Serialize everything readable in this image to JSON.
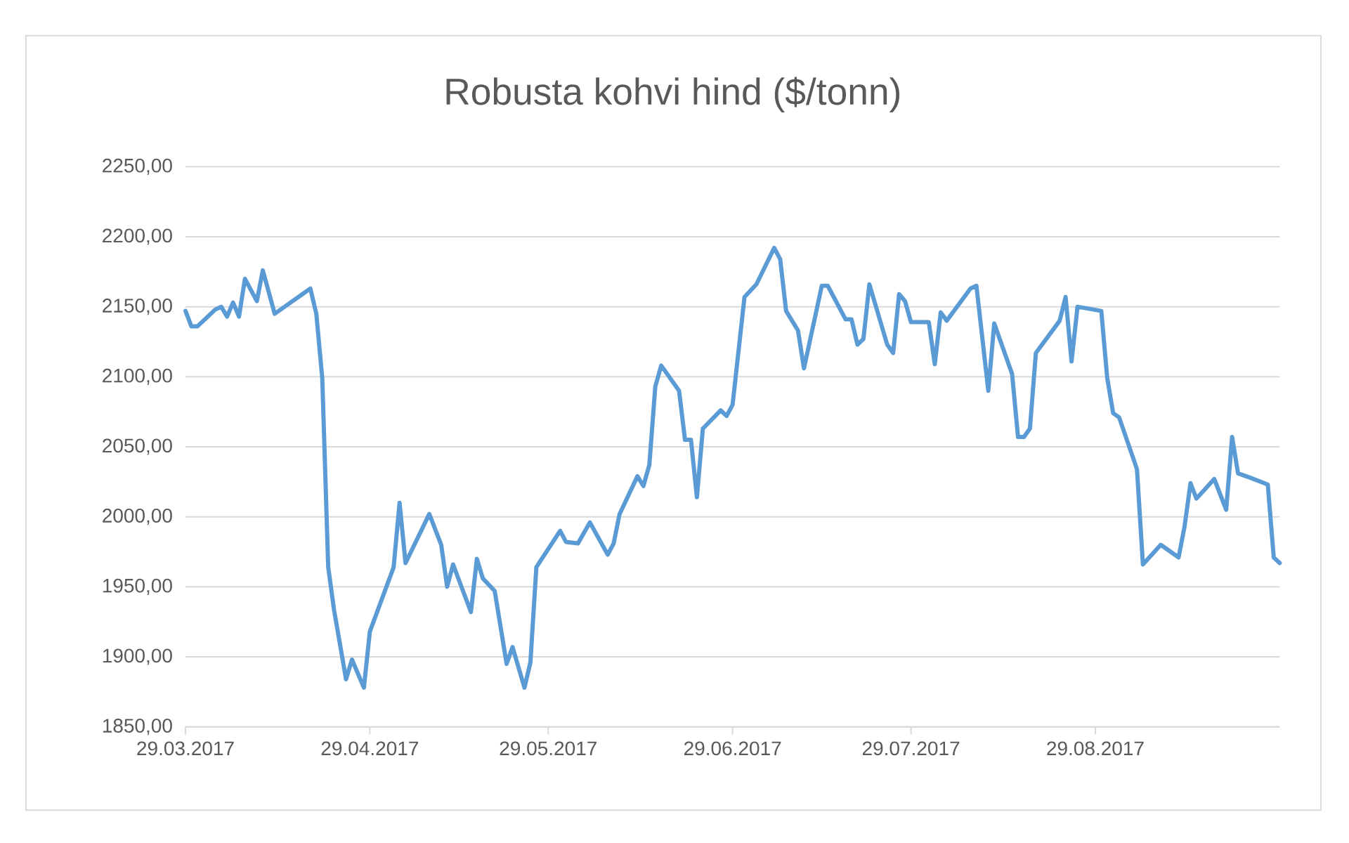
{
  "chart_data": {
    "type": "line",
    "title": "Robusta kohvi hind ($/tonn)",
    "color": "#5b9bd5",
    "grid": "y",
    "marker": "none",
    "line_style": "solid",
    "xlim": [
      "2017-03-29",
      "2017-09-29"
    ],
    "ylim": [
      1850,
      2250
    ],
    "xticks": [
      {
        "value": "2017-03-29",
        "label": "29.03.2017"
      },
      {
        "value": "2017-04-29",
        "label": "29.04.2017"
      },
      {
        "value": "2017-05-29",
        "label": "29.05.2017"
      },
      {
        "value": "2017-06-29",
        "label": "29.06.2017"
      },
      {
        "value": "2017-07-29",
        "label": "29.07.2017"
      },
      {
        "value": "2017-08-29",
        "label": "29.08.2017"
      }
    ],
    "yticks": [
      {
        "value": 1850,
        "label": "1850,00"
      },
      {
        "value": 1900,
        "label": "1900,00"
      },
      {
        "value": 1950,
        "label": "1950,00"
      },
      {
        "value": 2000,
        "label": "2000,00"
      },
      {
        "value": 2050,
        "label": "2050,00"
      },
      {
        "value": 2100,
        "label": "2100,00"
      },
      {
        "value": 2150,
        "label": "2150,00"
      },
      {
        "value": 2200,
        "label": "2200,00"
      },
      {
        "value": 2250,
        "label": "2250,00"
      }
    ],
    "x": [
      "2017-03-29",
      "2017-03-30",
      "2017-03-31",
      "2017-04-03",
      "2017-04-04",
      "2017-04-05",
      "2017-04-06",
      "2017-04-07",
      "2017-04-08",
      "2017-04-10",
      "2017-04-11",
      "2017-04-13",
      "2017-04-19",
      "2017-04-20",
      "2017-04-21",
      "2017-04-22",
      "2017-04-23",
      "2017-04-25",
      "2017-04-26",
      "2017-04-28",
      "2017-04-29",
      "2017-05-03",
      "2017-05-04",
      "2017-05-05",
      "2017-05-09",
      "2017-05-11",
      "2017-05-12",
      "2017-05-13",
      "2017-05-16",
      "2017-05-17",
      "2017-05-18",
      "2017-05-20",
      "2017-05-22",
      "2017-05-23",
      "2017-05-25",
      "2017-05-26",
      "2017-05-27",
      "2017-05-31",
      "2017-06-01",
      "2017-06-03",
      "2017-06-05",
      "2017-06-08",
      "2017-06-09",
      "2017-06-10",
      "2017-06-13",
      "2017-06-14",
      "2017-06-15",
      "2017-06-16",
      "2017-06-17",
      "2017-06-20",
      "2017-06-21",
      "2017-06-22",
      "2017-06-23",
      "2017-06-24",
      "2017-06-27",
      "2017-06-28",
      "2017-06-29",
      "2017-07-01",
      "2017-07-03",
      "2017-07-06",
      "2017-07-07",
      "2017-07-08",
      "2017-07-10",
      "2017-07-11",
      "2017-07-14",
      "2017-07-15",
      "2017-07-18",
      "2017-07-19",
      "2017-07-20",
      "2017-07-21",
      "2017-07-22",
      "2017-07-25",
      "2017-07-26",
      "2017-07-27",
      "2017-07-28",
      "2017-07-29",
      "2017-08-01",
      "2017-08-02",
      "2017-08-03",
      "2017-08-04",
      "2017-08-08",
      "2017-08-09",
      "2017-08-11",
      "2017-08-12",
      "2017-08-15",
      "2017-08-16",
      "2017-08-17",
      "2017-08-18",
      "2017-08-19",
      "2017-08-23",
      "2017-08-24",
      "2017-08-25",
      "2017-08-26",
      "2017-08-30",
      "2017-08-31",
      "2017-09-01",
      "2017-09-02",
      "2017-09-05",
      "2017-09-06",
      "2017-09-09",
      "2017-09-12",
      "2017-09-13",
      "2017-09-14",
      "2017-09-15",
      "2017-09-18",
      "2017-09-20",
      "2017-09-21",
      "2017-09-22",
      "2017-09-24",
      "2017-09-27",
      "2017-09-28",
      "2017-09-29"
    ],
    "values": [
      2147,
      2136,
      2136,
      2148,
      2150,
      2143,
      2153,
      2143,
      2170,
      2154,
      2176,
      2145,
      2163,
      2145,
      2099,
      1964,
      1933,
      1884,
      1898,
      1878,
      1918,
      1964,
      2010,
      1967,
      2002,
      1980,
      1950,
      1966,
      1932,
      1970,
      1956,
      1947,
      1895,
      1907,
      1878,
      1896,
      1964,
      1990,
      1982,
      1981,
      1996,
      1973,
      1981,
      2002,
      2029,
      2022,
      2037,
      2093,
      2108,
      2090,
      2055,
      2055,
      2014,
      2063,
      2076,
      2072,
      2080,
      2157,
      2166,
      2192,
      2184,
      2147,
      2133,
      2106,
      2165,
      2165,
      2141,
      2141,
      2123,
      2127,
      2166,
      2123,
      2117,
      2159,
      2154,
      2139,
      2139,
      2109,
      2146,
      2140,
      2163,
      2165,
      2090,
      2138,
      2102,
      2057,
      2057,
      2063,
      2117,
      2140,
      2157,
      2111,
      2150,
      2147,
      2099,
      2074,
      2071,
      2034,
      1966,
      1980,
      1971,
      1993,
      2024,
      2013,
      2027,
      2005,
      2057,
      2031,
      2028,
      2023,
      1971,
      1967
    ]
  }
}
